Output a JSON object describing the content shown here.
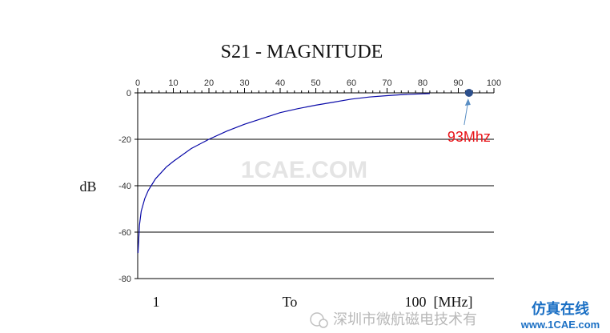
{
  "chart_data": {
    "type": "line",
    "title": "S21 - MAGNITUDE",
    "ylabel": "dB",
    "xlim": [
      0,
      100
    ],
    "ylim": [
      -80,
      0
    ],
    "x_ticks": [
      "0",
      "10",
      "20",
      "30",
      "40",
      "50",
      "60",
      "70",
      "80",
      "90",
      "100"
    ],
    "y_ticks": [
      "0",
      "-20",
      "-40",
      "-60",
      "-80"
    ],
    "grid": "horizontal",
    "bottom_labels": {
      "start": "1",
      "middle": "To",
      "end": "100  [MHz]"
    },
    "series": [
      {
        "color": "#0a0aa8",
        "x": [
          0.1,
          0.5,
          1,
          2,
          3,
          5,
          8,
          10,
          15,
          20,
          25,
          30,
          35,
          40,
          45,
          50,
          55,
          60,
          65,
          70,
          75,
          80,
          82
        ],
        "y": [
          -69,
          -57,
          -51,
          -45.5,
          -42,
          -37,
          -32,
          -29.5,
          -24,
          -20,
          -16.5,
          -13.5,
          -11,
          -8.5,
          -6.8,
          -5.3,
          -4,
          -2.7,
          -1.8,
          -1.2,
          -0.7,
          -0.4,
          -0.3
        ]
      }
    ],
    "marker": {
      "x": 93,
      "y": 0,
      "label": "93Mhz",
      "color": "#2c4f8c",
      "label_color": "#e8161b"
    }
  },
  "watermark": {
    "site": "1CAE.COM",
    "account": "深圳市微航磁电技术有",
    "brand": "仿真在线",
    "brand_url": "www.1CAE.com"
  }
}
